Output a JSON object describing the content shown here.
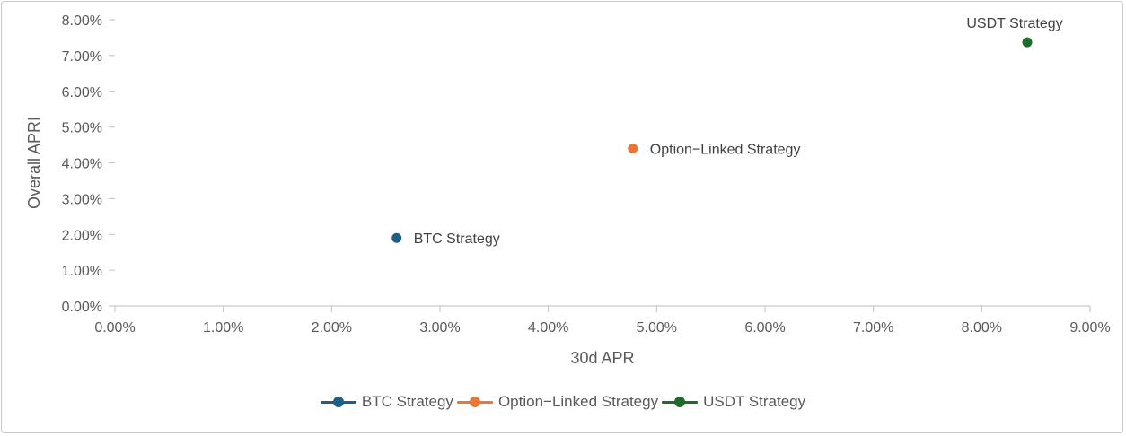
{
  "chart_data": {
    "type": "scatter",
    "xlabel": "30d APR",
    "ylabel": "Overall APRI",
    "xlim": [
      0,
      9
    ],
    "ylim": [
      0,
      8
    ],
    "x_ticks": [
      "0.00%",
      "1.00%",
      "2.00%",
      "3.00%",
      "4.00%",
      "5.00%",
      "6.00%",
      "7.00%",
      "8.00%",
      "9.00%"
    ],
    "y_ticks": [
      "0.00%",
      "1.00%",
      "2.00%",
      "3.00%",
      "4.00%",
      "5.00%",
      "6.00%",
      "7.00%",
      "8.00%"
    ],
    "grid": false,
    "legend_position": "bottom",
    "series": [
      {
        "name": "BTC Strategy",
        "color": "#1f5f86",
        "label_position": "right",
        "points": [
          {
            "x": 2.6,
            "y": 1.9
          }
        ]
      },
      {
        "name": "Option−Linked Strategy",
        "color": "#e8773a",
        "label_position": "right",
        "points": [
          {
            "x": 4.78,
            "y": 4.4
          }
        ]
      },
      {
        "name": "USDT Strategy",
        "color": "#1e6b2a",
        "label_position": "above",
        "points": [
          {
            "x": 8.42,
            "y": 7.37
          }
        ]
      }
    ]
  }
}
